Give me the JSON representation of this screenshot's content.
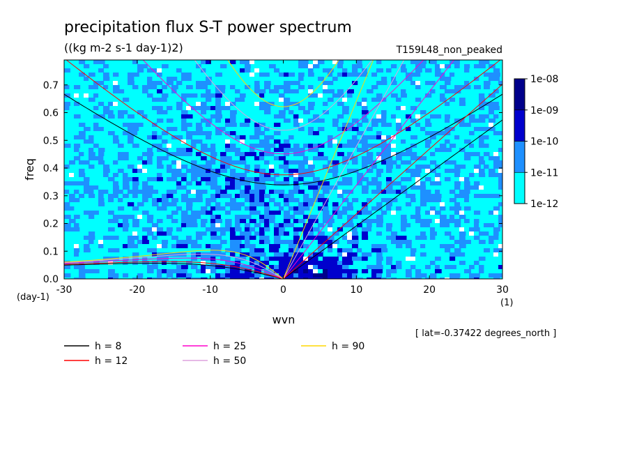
{
  "chart_data": {
    "type": "heatmap",
    "title": "precipitation flux S-T power spectrum",
    "subtitle": "((kg m-2 s-1 day-1)2)",
    "run_label": "T159L48_non_peaked",
    "xlabel": "wvn",
    "ylabel": "freq",
    "x_unit": "(1)",
    "y_unit": "(day-1)",
    "xlim": [
      -30,
      30
    ],
    "ylim": [
      0.0,
      0.79
    ],
    "x_ticks": [
      -30,
      -20,
      -10,
      0,
      10,
      20,
      30
    ],
    "x_tick_labels": [
      "-30",
      "-20",
      "-10",
      "0",
      "10",
      "20",
      "30"
    ],
    "y_ticks": [
      0.0,
      0.1,
      0.2,
      0.3,
      0.4,
      0.5,
      0.6,
      0.7
    ],
    "y_tick_labels": [
      "0.0",
      "0.1",
      "0.2",
      "0.3",
      "0.4",
      "0.5",
      "0.6",
      "0.7"
    ],
    "colorbar": {
      "levels": [
        "1e-12",
        "1e-11",
        "1e-10",
        "1e-09",
        "1e-08"
      ],
      "colors": [
        "#00ffff",
        "#1e90ff",
        "#0000cd",
        "#00008b",
        "#4b0082"
      ]
    },
    "footnote": "[ lat=-0.37422 degrees_north ]",
    "dispersion_curves": [
      {
        "label": "h =  8",
        "h": 8,
        "color": "#000000"
      },
      {
        "label": "h = 12",
        "h": 12,
        "color": "#ff0000"
      },
      {
        "label": "h = 25",
        "h": 25,
        "color": "#ff00cc"
      },
      {
        "label": "h = 50",
        "h": 50,
        "color": "#dda0dd"
      },
      {
        "label": "h = 90",
        "h": 90,
        "color": "#ffd700"
      }
    ],
    "field_description_values": {
      "background_level": "1e-12",
      "low_freq_enhanced_region": "wvn -15..10, freq 0..0.3",
      "kelvin_band_peak": "wvn 0..8, freq 0..0.1"
    }
  }
}
